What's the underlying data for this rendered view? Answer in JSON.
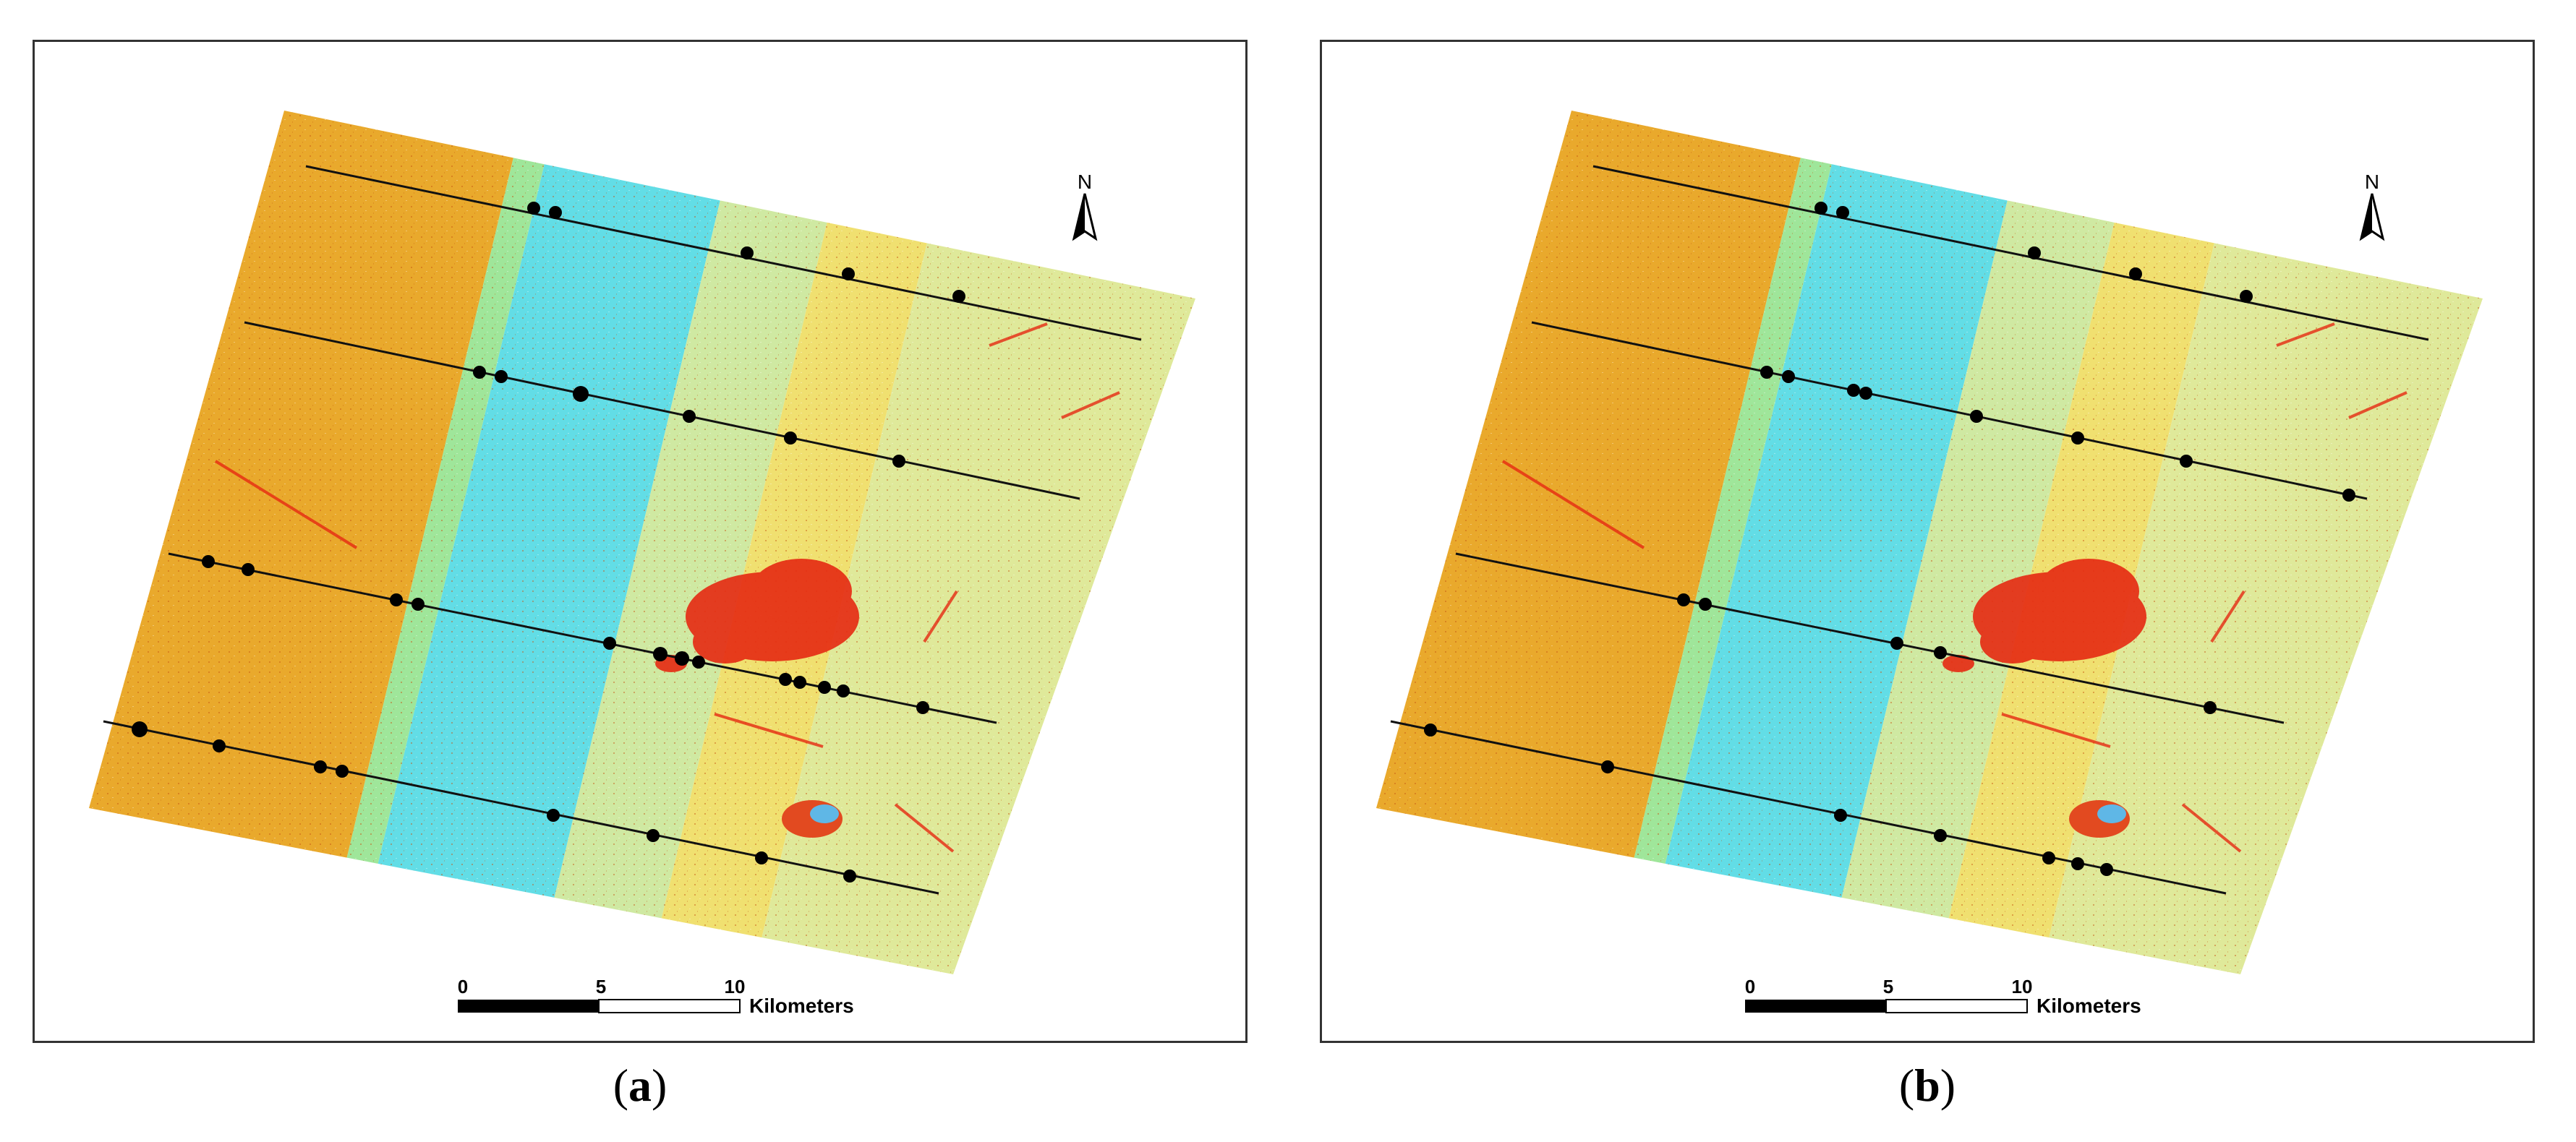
{
  "panels": [
    {
      "id": "a",
      "caption_letter": "a",
      "north_label": "N",
      "scale": {
        "ticks": [
          "0",
          "5",
          "10"
        ],
        "unit": "Kilometers"
      },
      "swath_colors": [
        "#e9a92c",
        "#9fe69a",
        "#62dde6",
        "#cfe9a2",
        "#f0e070",
        "#dfe99a"
      ],
      "accent_colors": {
        "urban": "#e62a12",
        "line": "#111111",
        "point": "#000000"
      }
    },
    {
      "id": "b",
      "caption_letter": "b",
      "north_label": "N",
      "scale": {
        "ticks": [
          "0",
          "5",
          "10"
        ],
        "unit": "Kilometers"
      },
      "swath_colors": [
        "#e9a92c",
        "#9fe69a",
        "#62dde6",
        "#cfe9a2",
        "#f0e070",
        "#dfe99a"
      ],
      "accent_colors": {
        "urban": "#e62a12",
        "line": "#111111",
        "point": "#000000"
      }
    }
  ]
}
